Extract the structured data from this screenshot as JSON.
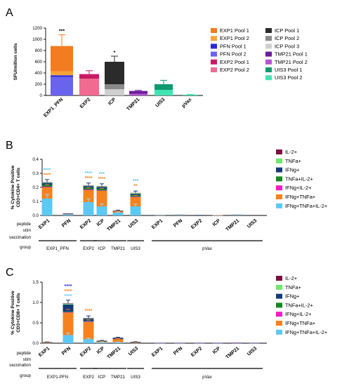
{
  "chart_data": [
    {
      "panel": "A",
      "type": "bar",
      "stacked": true,
      "ylabel": "SFU/million cells",
      "ylim": [
        0,
        1200
      ],
      "yticks": [
        0,
        200,
        400,
        600,
        800,
        1000,
        1200
      ],
      "categories": [
        "EXP1_PFN",
        "EXP2",
        "ICP",
        "TMP21",
        "UIS3",
        "pVax"
      ],
      "legend": [
        {
          "label": "EXP1 Pool 1",
          "color": "#f47c20"
        },
        {
          "label": "EXP1 Pool 2",
          "color": "#f7a33b"
        },
        {
          "label": "PFN Pool 1",
          "color": "#2a2ad6"
        },
        {
          "label": "PFN Pool 2",
          "color": "#6a63ee"
        },
        {
          "label": "EXP2 Pool 1",
          "color": "#c81a64"
        },
        {
          "label": "EXP2 Pool 2",
          "color": "#f06b8f"
        },
        {
          "label": "ICP Pool 1",
          "color": "#2b2b2b"
        },
        {
          "label": "ICP Pool 2",
          "color": "#8a8a8a"
        },
        {
          "label": "ICP Pool 3",
          "color": "#cfcfcf"
        },
        {
          "label": "TMP21 Pool 1",
          "color": "#6a1a9a"
        },
        {
          "label": "TMP21 Pool 2",
          "color": "#b553d3"
        },
        {
          "label": "UIS3 Pool 1",
          "color": "#0e9a6e"
        },
        {
          "label": "UIS3 Pool 2",
          "color": "#43e3b2"
        }
      ],
      "stacks": [
        {
          "category": "EXP1_PFN",
          "segments": [
            {
              "series": "PFN Pool 2",
              "value": 330
            },
            {
              "series": "PFN Pool 1",
              "value": 30
            },
            {
              "series": "EXP1 Pool 2",
              "value": 70
            },
            {
              "series": "EXP1 Pool 1",
              "value": 450
            }
          ],
          "total": 880,
          "error": 200,
          "sig": "***"
        },
        {
          "category": "EXP2",
          "segments": [
            {
              "series": "EXP2 Pool 2",
              "value": 300
            },
            {
              "series": "EXP2 Pool 1",
              "value": 80
            }
          ],
          "total": 380,
          "error": 60,
          "sig": ""
        },
        {
          "category": "ICP",
          "segments": [
            {
              "series": "ICP Pool 3",
              "value": 110
            },
            {
              "series": "ICP Pool 2",
              "value": 90
            },
            {
              "series": "ICP Pool 1",
              "value": 400
            }
          ],
          "total": 600,
          "error": 100,
          "sig": "*"
        },
        {
          "category": "TMP21",
          "segments": [
            {
              "series": "TMP21 Pool 2",
              "value": 30
            },
            {
              "series": "TMP21 Pool 1",
              "value": 50
            }
          ],
          "total": 80,
          "error": 10,
          "sig": ""
        },
        {
          "category": "UIS3",
          "segments": [
            {
              "series": "UIS3 Pool 2",
              "value": 100
            },
            {
              "series": "UIS3 Pool 1",
              "value": 100
            }
          ],
          "total": 200,
          "error": 70,
          "sig": ""
        },
        {
          "category": "pVax",
          "segments": [
            {
              "series": "UIS3 Pool 2",
              "value": 15
            }
          ],
          "total": 15,
          "error": 5,
          "sig": ""
        }
      ]
    },
    {
      "panel": "B",
      "type": "bar",
      "stacked": true,
      "ylabel": "% Cytokine Positive CD3+CD4+ T cells",
      "ylim": [
        0,
        0.4
      ],
      "yticks": [
        "0.0",
        "0.1",
        "0.2",
        "0.3",
        "0.4"
      ],
      "row_labels": [
        "peptide stim",
        "vaccination group"
      ],
      "categories": [
        "EXP1",
        "PFN",
        "EXP2",
        "ICP",
        "TMP21",
        "UIS3",
        "EXP1",
        "PFN",
        "EXP2",
        "ICP",
        "TMP21",
        "UIS3"
      ],
      "groups": [
        {
          "label": "EXP1_PFN",
          "span": [
            0,
            1
          ]
        },
        {
          "label": "EXP2",
          "span": [
            2,
            2
          ]
        },
        {
          "label": "ICP",
          "span": [
            3,
            3
          ]
        },
        {
          "label": "TMP21",
          "span": [
            4,
            4
          ]
        },
        {
          "label": "UIS3",
          "span": [
            5,
            5
          ]
        },
        {
          "label": "pVax",
          "span": [
            6,
            11
          ]
        }
      ],
      "legend": [
        {
          "label": "IL-2+",
          "color": "#7a1040"
        },
        {
          "label": "TNFa+",
          "color": "#6ee86e"
        },
        {
          "label": "IFNg+",
          "color": "#163a78"
        },
        {
          "label": "TNFa+IL-2+",
          "color": "#138a20"
        },
        {
          "label": "IFNg+IL-2+",
          "color": "#f21cc4"
        },
        {
          "label": "IFNg+TNFa+",
          "color": "#f5821f"
        },
        {
          "label": "IFNg+TNFa+IL-2+",
          "color": "#5cc8f4"
        }
      ],
      "series": [
        {
          "name": "IFNg+TNFa+IL-2+",
          "values": [
            0.12,
            0.008,
            0.095,
            0.065,
            0.02,
            0.065,
            0.001,
            0.003,
            0.002,
            0.001,
            0.003,
            0.002
          ]
        },
        {
          "name": "IFNg+TNFa+",
          "values": [
            0.08,
            0.002,
            0.085,
            0.11,
            0.008,
            0.065,
            0.001,
            0.002,
            0.002,
            0.001,
            0.002,
            0.001
          ]
        },
        {
          "name": "IFNg+IL-2+",
          "values": [
            0.005,
            0.001,
            0.005,
            0.003,
            0.001,
            0.004,
            0,
            0,
            0,
            0,
            0,
            0
          ]
        },
        {
          "name": "TNFa+IL-2+",
          "values": [
            0.012,
            0.001,
            0.012,
            0.01,
            0.002,
            0.01,
            0,
            0,
            0,
            0,
            0,
            0
          ]
        },
        {
          "name": "IFNg+",
          "values": [
            0.015,
            0.001,
            0.012,
            0.015,
            0.002,
            0.01,
            0.001,
            0.001,
            0.001,
            0,
            0.001,
            0.001
          ]
        },
        {
          "name": "TNFa+",
          "values": [
            0.003,
            0.001,
            0.003,
            0.004,
            0.001,
            0.005,
            0,
            0,
            0,
            0,
            0,
            0
          ]
        },
        {
          "name": "IL-2+",
          "values": [
            0.002,
            0.001,
            0.002,
            0.002,
            0.001,
            0.002,
            0,
            0,
            0,
            0,
            0,
            0
          ]
        }
      ],
      "sig": [
        {
          "index": 0,
          "marks": [
            {
              "text": "****",
              "color": "#5cc8f4"
            },
            {
              "text": "****",
              "color": "#f5821f"
            }
          ]
        },
        {
          "index": 2,
          "marks": [
            {
              "text": "****",
              "color": "#5cc8f4"
            },
            {
              "text": "****",
              "color": "#f5821f"
            }
          ]
        },
        {
          "index": 3,
          "marks": [
            {
              "text": "***",
              "color": "#5cc8f4"
            },
            {
              "text": "****",
              "color": "#f5821f"
            }
          ]
        },
        {
          "index": 5,
          "marks": [
            {
              "text": "***",
              "color": "#5cc8f4"
            },
            {
              "text": "**",
              "color": "#f5821f"
            }
          ]
        }
      ]
    },
    {
      "panel": "C",
      "type": "bar",
      "stacked": true,
      "ylabel": "% Cytokine Positive CD3+CD8+ T cells",
      "ylim": [
        0,
        1.5
      ],
      "yticks": [
        "0.0",
        "0.5",
        "1.0",
        "1.5"
      ],
      "row_labels": [
        "peptide stim",
        "vaccination group"
      ],
      "categories": [
        "EXP1",
        "PFN",
        "EXP2",
        "ICP",
        "TMP21",
        "UIS3",
        "EXP1",
        "PFN",
        "EXP2",
        "ICP",
        "TMP21",
        "UIS3"
      ],
      "groups": [
        {
          "label": "EXP1-PFN",
          "span": [
            0,
            1
          ]
        },
        {
          "label": "EXP2",
          "span": [
            2,
            2
          ]
        },
        {
          "label": "ICP",
          "span": [
            3,
            3
          ]
        },
        {
          "label": "TMP21",
          "span": [
            4,
            4
          ]
        },
        {
          "label": "UIS3",
          "span": [
            5,
            5
          ]
        },
        {
          "label": "pVax",
          "span": [
            6,
            11
          ]
        }
      ],
      "legend": [
        {
          "label": "IL-2+",
          "color": "#7a1040"
        },
        {
          "label": "TNFa+",
          "color": "#6ee86e"
        },
        {
          "label": "IFNg+",
          "color": "#163a78"
        },
        {
          "label": "TNFa+IL-2+",
          "color": "#138a20"
        },
        {
          "label": "IFNg+IL-2+",
          "color": "#f21cc4"
        },
        {
          "label": "IFNg+TNFa+",
          "color": "#f5821f"
        },
        {
          "label": "IFNg+TNFa+IL-2+",
          "color": "#5cc8f4"
        }
      ],
      "series": [
        {
          "name": "IFNg+TNFa+IL-2+",
          "values": [
            0.005,
            0.2,
            0.1,
            0.02,
            0.02,
            0.005,
            0.003,
            0.003,
            0.003,
            0.003,
            0.003,
            0.003
          ]
        },
        {
          "name": "IFNg+TNFa+",
          "values": [
            0.01,
            0.55,
            0.42,
            0.02,
            0.08,
            0.01,
            0.004,
            0.004,
            0.004,
            0.004,
            0.006,
            0.004
          ]
        },
        {
          "name": "IFNg+IL-2+",
          "values": [
            0.002,
            0.01,
            0.01,
            0.002,
            0.003,
            0.002,
            0.001,
            0.001,
            0.001,
            0.001,
            0.001,
            0.001
          ]
        },
        {
          "name": "TNFa+IL-2+",
          "values": [
            0.002,
            0.01,
            0.01,
            0.002,
            0.003,
            0.002,
            0,
            0,
            0,
            0,
            0,
            0
          ]
        },
        {
          "name": "IFNg+",
          "values": [
            0.005,
            0.18,
            0.06,
            0.015,
            0.025,
            0.01,
            0.003,
            0.003,
            0.003,
            0.003,
            0.004,
            0.003
          ]
        },
        {
          "name": "TNFa+",
          "values": [
            0.002,
            0.02,
            0.01,
            0.002,
            0.003,
            0.002,
            0,
            0,
            0,
            0,
            0,
            0
          ]
        },
        {
          "name": "IL-2+",
          "values": [
            0.002,
            0.01,
            0.01,
            0.002,
            0.002,
            0.002,
            0,
            0,
            0,
            0,
            0,
            0
          ]
        }
      ],
      "sig": [
        {
          "index": 1,
          "marks": [
            {
              "text": "****",
              "color": "#2a2ad6"
            },
            {
              "text": "****",
              "color": "#f5821f"
            },
            {
              "text": "****",
              "color": "#5cc8f4"
            }
          ]
        },
        {
          "index": 2,
          "marks": [
            {
              "text": "****",
              "color": "#f5821f"
            }
          ]
        }
      ]
    }
  ]
}
